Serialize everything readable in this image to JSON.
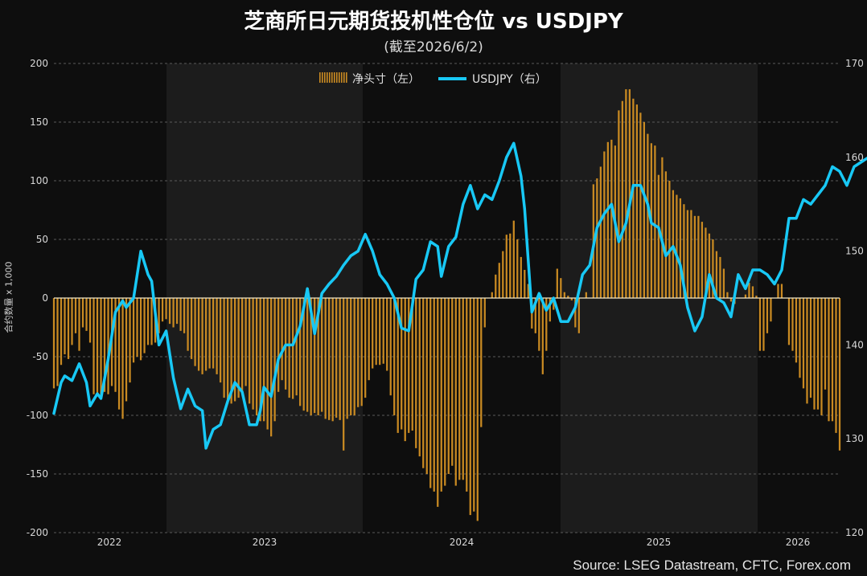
{
  "title": "芝商所日元期货投机性仓位 vs USDJPY",
  "subtitle": "(截至2026/6/2)",
  "source": "Source: LSEG Datastream, CFTC, Forex.com",
  "colors": {
    "bars": "#c98a22",
    "line": "#18c8f5",
    "zero": "#f5e9c8",
    "grid": "#5a5a5a",
    "band": "#1c1c1c"
  },
  "chart_data": {
    "type": "bar+line",
    "ylabel_left": "合约数量 x 1,000",
    "ylim_left": [
      -200,
      200
    ],
    "ylim_right": [
      120,
      170
    ],
    "yticks_left": [
      "200",
      "150",
      "100",
      "50",
      "0",
      "-50",
      "-100",
      "-150",
      "-200"
    ],
    "yticks_right": [
      "170",
      "160",
      "150",
      "140",
      "130",
      "120"
    ],
    "x_labels": [
      "2022",
      "2023",
      "2024",
      "2025",
      "2026"
    ],
    "legend": {
      "position": "top-center",
      "bars_label": "净头寸（左）",
      "line_label": "USDJPY（右）"
    },
    "grid": true,
    "series": [
      {
        "name": "净头寸（左）",
        "axis": "left",
        "type": "bar",
        "values": [
          -77,
          -75,
          -57,
          -48,
          -52,
          -40,
          -30,
          -45,
          -25,
          -28,
          -38,
          -82,
          -82,
          -83,
          -80,
          -82,
          -75,
          -80,
          -95,
          -103,
          -88,
          -72,
          -55,
          -50,
          -53,
          -47,
          -40,
          -40,
          -38,
          -30,
          -20,
          -18,
          -22,
          -25,
          -22,
          -28,
          -30,
          -45,
          -52,
          -58,
          -62,
          -65,
          -62,
          -60,
          -60,
          -65,
          -72,
          -85,
          -90,
          -90,
          -88,
          -85,
          -80,
          -75,
          -90,
          -95,
          -100,
          -105,
          -105,
          -112,
          -118,
          -105,
          -80,
          -70,
          -78,
          -85,
          -86,
          -83,
          -92,
          -96,
          -97,
          -100,
          -98,
          -100,
          -97,
          -103,
          -104,
          -105,
          -102,
          -104,
          -130,
          -103,
          -100,
          -100,
          -93,
          -92,
          -85,
          -70,
          -60,
          -57,
          -57,
          -56,
          -62,
          -83,
          -100,
          -115,
          -112,
          -122,
          -115,
          -113,
          -128,
          -135,
          -145,
          -150,
          -162,
          -165,
          -178,
          -165,
          -160,
          -150,
          -143,
          -160,
          -155,
          -155,
          -165,
          -185,
          -182,
          -190,
          -110,
          -25,
          0,
          5,
          20,
          30,
          40,
          54,
          55,
          66,
          50,
          35,
          24,
          12,
          -26,
          -30,
          -45,
          -65,
          -45,
          -20,
          -10,
          25,
          17,
          5,
          2,
          -2,
          -25,
          -30,
          0,
          5,
          0,
          97,
          102,
          112,
          125,
          133,
          135,
          130,
          160,
          168,
          178,
          178,
          170,
          165,
          158,
          150,
          140,
          132,
          130,
          105,
          120,
          108,
          100,
          92,
          88,
          85,
          80,
          75,
          75,
          70,
          70,
          65,
          60,
          55,
          50,
          40,
          35,
          25,
          5,
          -3,
          -5,
          0,
          0,
          3,
          13,
          10,
          2,
          -45,
          -45,
          -30,
          -20,
          0,
          12,
          12,
          0,
          -40,
          -45,
          -55,
          -68,
          -77,
          -90,
          -85,
          -95,
          -95,
          -100,
          -78,
          -105,
          -105,
          -115,
          -130
        ]
      },
      {
        "name": "USDJPY（右）",
        "axis": "right",
        "type": "line",
        "x": [
          0,
          2,
          3,
          5,
          7,
          9,
          10,
          12,
          13,
          15,
          17,
          19,
          20,
          22,
          24,
          26,
          27,
          29,
          31,
          33,
          35,
          37,
          39,
          41,
          42,
          44,
          46,
          48,
          50,
          52,
          54,
          56,
          57,
          58,
          60,
          62,
          64,
          66,
          68,
          70,
          72,
          74,
          76,
          78,
          80,
          82,
          84,
          86,
          88,
          90,
          92,
          94,
          96,
          98,
          100,
          102,
          104,
          106,
          107,
          109,
          111,
          113,
          115,
          117,
          119,
          121,
          123,
          125,
          127,
          129,
          130,
          132,
          134,
          136,
          138,
          140,
          142,
          144,
          146,
          148,
          150,
          152,
          154,
          156,
          158,
          160,
          162,
          164,
          165,
          167,
          169,
          171,
          173,
          175,
          177,
          179,
          181,
          183,
          185,
          187,
          189,
          191,
          193,
          195,
          197,
          199,
          201,
          203,
          205,
          207,
          209,
          211,
          213,
          215,
          217,
          219,
          221,
          223,
          225
        ],
        "y": [
          132.7,
          136.0,
          136.7,
          136.2,
          138.0,
          136.0,
          133.5,
          134.8,
          134.3,
          138.5,
          143.5,
          144.7,
          144.0,
          145.0,
          150.0,
          147.5,
          146.8,
          140.0,
          141.5,
          136.5,
          133.2,
          135.3,
          133.5,
          133.0,
          129.0,
          131.0,
          131.5,
          134.0,
          136.0,
          135.0,
          131.5,
          131.5,
          133.0,
          135.5,
          134.5,
          138.5,
          140.0,
          140.0,
          142.0,
          146.0,
          141.2,
          145.5,
          146.5,
          147.3,
          148.5,
          149.5,
          150.0,
          151.8,
          150.0,
          147.5,
          146.5,
          145.0,
          141.8,
          141.5,
          147.0,
          148.0,
          151.0,
          150.5,
          147.3,
          150.5,
          151.5,
          155.0,
          157.0,
          154.5,
          156.0,
          155.5,
          157.5,
          160.0,
          161.5,
          158.0,
          154.5,
          143.5,
          145.5,
          143.7,
          145.0,
          142.5,
          142.5,
          144.0,
          147.5,
          148.5,
          152.5,
          154.0,
          155.0,
          151.0,
          153.0,
          157.0,
          157.0,
          155.0,
          153.0,
          152.5,
          149.5,
          150.5,
          148.5,
          144.0,
          141.5,
          143.0,
          147.5,
          145.0,
          144.5,
          143.0,
          147.5,
          146.0,
          148.0,
          148.0,
          147.5,
          146.5,
          148.0,
          153.5,
          153.5,
          155.5,
          155.0,
          156.0,
          157.0,
          159.0,
          158.5,
          157.0,
          159.0,
          159.5,
          160.0
        ]
      }
    ]
  }
}
